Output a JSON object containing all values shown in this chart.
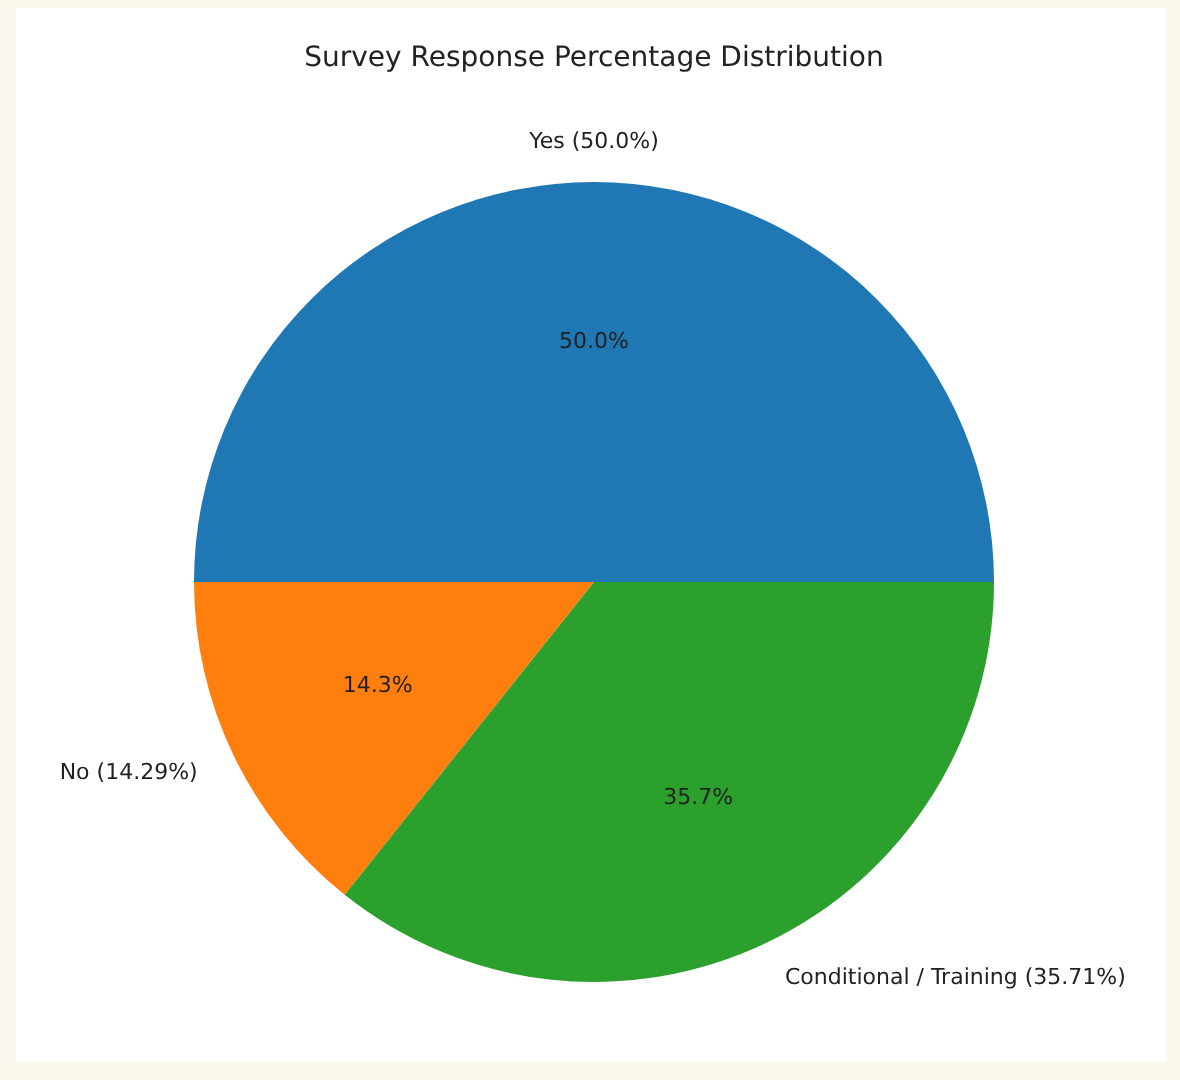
{
  "chart_data": {
    "type": "pie",
    "title": "Survey Response Percentage Distribution",
    "categories": [
      "Yes (50.0%)",
      "No (14.29%)",
      "Conditional / Training (35.71%)"
    ],
    "values": [
      50,
      14.29,
      35.71
    ],
    "colors": [
      "#1f77b4",
      "#ff7f0e",
      "#2ca02c"
    ],
    "value_labels": [
      "50.0%",
      "14.3%",
      "35.7%"
    ]
  }
}
